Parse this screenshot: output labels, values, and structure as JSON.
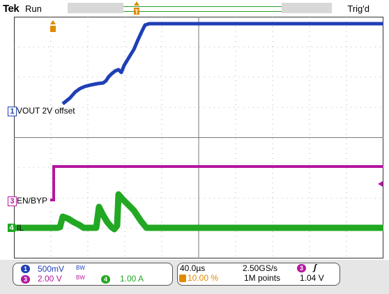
{
  "header": {
    "brand": "Tek",
    "status": "Run",
    "trigger_status": "Trig'd",
    "trigger_marker": "T"
  },
  "channels": [
    {
      "number": "1",
      "label": "VOUT 2V offset",
      "scale": "500mV",
      "bw_symbol": "BW",
      "color": "#1f3fb5"
    },
    {
      "number": "3",
      "label": "EN/BYP",
      "scale": "2.00 V",
      "bw_symbol": "BW",
      "color": "#b5169f"
    },
    {
      "number": "4",
      "label": "IL",
      "scale": "1.00 A",
      "color": "#22a822"
    }
  ],
  "timebase": {
    "horizontal_scale": "40.0µs",
    "sample_rate": "2.50GS/s",
    "trigger_position": "10.00 %",
    "record_length": "1M points"
  },
  "trigger": {
    "source": "3",
    "slope_symbol": "ʃ",
    "level": "1.04 V"
  },
  "colors": {
    "ch1": "#1f3fb5",
    "ch3": "#b5169f",
    "ch4": "#22a822",
    "trigger": "#e08a00",
    "grid": "#555555"
  }
}
